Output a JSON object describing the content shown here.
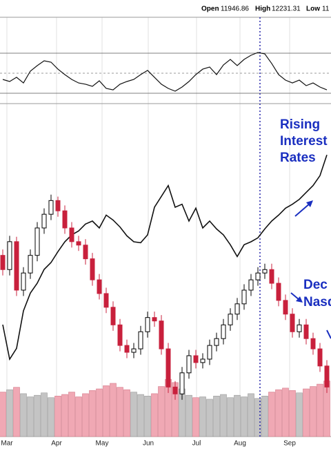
{
  "chart_data": {
    "type": "candlestick",
    "header": {
      "open_label": "Open",
      "open": 11946.86,
      "high_label": "High",
      "high": 12231.31,
      "low_label": "Low",
      "low": "11"
    },
    "xlim": [
      -0.4,
      47.6
    ],
    "xticks": [
      {
        "value": 0.6,
        "label": "Mar"
      },
      {
        "value": 7.8,
        "label": "Apr"
      },
      {
        "value": 14.4,
        "label": "May"
      },
      {
        "value": 21.1,
        "label": "Jun"
      },
      {
        "value": 28.1,
        "label": "Jul"
      },
      {
        "value": 34.4,
        "label": "Aug"
      },
      {
        "value": 41.6,
        "label": "Sep"
      }
    ],
    "ylim": [
      10250,
      16600
    ],
    "open": [
      13500,
      13210,
      13780,
      12790,
      13140,
      13500,
      14060,
      14340,
      14620,
      14410,
      14060,
      13780,
      13710,
      13430,
      13000,
      12720,
      12440,
      12080,
      11660,
      11520,
      11590,
      11940,
      12230,
      12160,
      11590,
      10810,
      10670,
      11100,
      11450,
      11310,
      11380,
      11660,
      11800,
      12080,
      12300,
      12510,
      12790,
      13000,
      13140,
      13210,
      12930,
      12580,
      12300,
      11940,
      12080,
      11800,
      11590,
      11240
    ],
    "high": [
      13620,
      13900,
      13880,
      13260,
      13620,
      14180,
      14460,
      14740,
      14700,
      14520,
      14180,
      13900,
      13830,
      13550,
      13120,
      12840,
      12560,
      12200,
      11780,
      11710,
      12060,
      12350,
      12350,
      12280,
      11710,
      10930,
      11220,
      11570,
      11570,
      11500,
      11780,
      11920,
      12200,
      12420,
      12630,
      12910,
      13120,
      13260,
      13330,
      13330,
      13050,
      12700,
      12420,
      12200,
      12200,
      11920,
      11710,
      11360
    ],
    "low": [
      13090,
      13090,
      12670,
      12670,
      13020,
      13380,
      13940,
      14220,
      14290,
      13940,
      13660,
      13590,
      13310,
      12880,
      12600,
      12320,
      11960,
      11540,
      11400,
      11400,
      11470,
      11820,
      12040,
      11470,
      10690,
      10550,
      10550,
      10980,
      11190,
      11190,
      11260,
      11540,
      11680,
      11960,
      12180,
      12390,
      12670,
      12880,
      13020,
      12810,
      12460,
      12180,
      11820,
      11820,
      11680,
      11470,
      11120,
      10690
    ],
    "close": [
      13210,
      13780,
      12790,
      13140,
      13500,
      14060,
      14340,
      14620,
      14410,
      14060,
      13780,
      13710,
      13430,
      13000,
      12720,
      12440,
      12080,
      11660,
      11520,
      11590,
      11940,
      12230,
      12160,
      11590,
      10810,
      10670,
      11100,
      11450,
      11310,
      11380,
      11660,
      11800,
      12080,
      12300,
      12510,
      12790,
      13000,
      13140,
      13210,
      12930,
      12580,
      12300,
      11940,
      12080,
      11800,
      11590,
      11240,
      10810
    ],
    "up_color": "#000000",
    "down_color": "#c8203c",
    "y2lim": [
      1.2,
      4.35
    ],
    "rate": {
      "color": "#111111",
      "axis": "y2",
      "values": [
        2.11,
        1.76,
        1.87,
        2.25,
        2.43,
        2.53,
        2.67,
        2.74,
        2.85,
        2.95,
        3.02,
        3.06,
        3.13,
        3.16,
        3.09,
        3.22,
        3.17,
        3.1,
        3.01,
        2.95,
        2.94,
        3.02,
        3.3,
        3.41,
        3.52,
        3.3,
        3.33,
        3.16,
        3.29,
        3.09,
        3.16,
        3.08,
        3.02,
        2.92,
        2.8,
        2.92,
        2.95,
        2.99,
        3.08,
        3.16,
        3.22,
        3.29,
        3.33,
        3.38,
        3.45,
        3.52,
        3.62,
        3.83
      ]
    },
    "rsi": {
      "color": "#111111",
      "ylim": [
        0,
        100
      ],
      "levels": [
        70,
        50,
        30
      ],
      "values": [
        43.8,
        41.7,
        45.9,
        40.3,
        52.1,
        57.6,
        62.4,
        61.0,
        54.1,
        48.6,
        43.8,
        40.3,
        39.0,
        36.9,
        42.4,
        34.8,
        33.4,
        39.0,
        41.7,
        43.8,
        48.6,
        52.8,
        45.9,
        39.0,
        34.8,
        32.1,
        36.2,
        41.7,
        48.6,
        54.1,
        56.2,
        48.6,
        58.3,
        63.8,
        57.6,
        63.8,
        67.9,
        70.7,
        69.3,
        59.7,
        48.6,
        43.1,
        40.3,
        43.1,
        37.6,
        40.3,
        36.2,
        33.4
      ]
    },
    "volume": {
      "ylim": [
        0,
        8
      ],
      "up_color": "#c4c4c4",
      "down_color": "#f0a8b4",
      "values": [
        5.6,
        5.9,
        6.2,
        5.4,
        5.0,
        5.2,
        5.5,
        4.9,
        5.1,
        5.3,
        5.6,
        5.0,
        5.4,
        5.8,
        6.0,
        6.4,
        6.7,
        6.2,
        5.9,
        5.6,
        5.3,
        5.1,
        5.4,
        6.3,
        7.2,
        6.8,
        6.0,
        5.2,
        4.9,
        5.0,
        4.7,
        5.1,
        5.3,
        4.9,
        5.2,
        5.0,
        5.4,
        4.8,
        5.1,
        5.6,
        5.9,
        6.1,
        5.8,
        5.5,
        6.0,
        6.3,
        6.6,
        7.0
      ]
    },
    "vline": {
      "value": 37.3,
      "color": "#2222aa"
    },
    "annotations": [
      {
        "color": "#1a2fc0",
        "lines": [
          "Rising",
          "Interest",
          "Rates"
        ]
      },
      {
        "color": "#1a2fc0",
        "lines": [
          "Dec",
          "Nasd"
        ]
      }
    ]
  }
}
